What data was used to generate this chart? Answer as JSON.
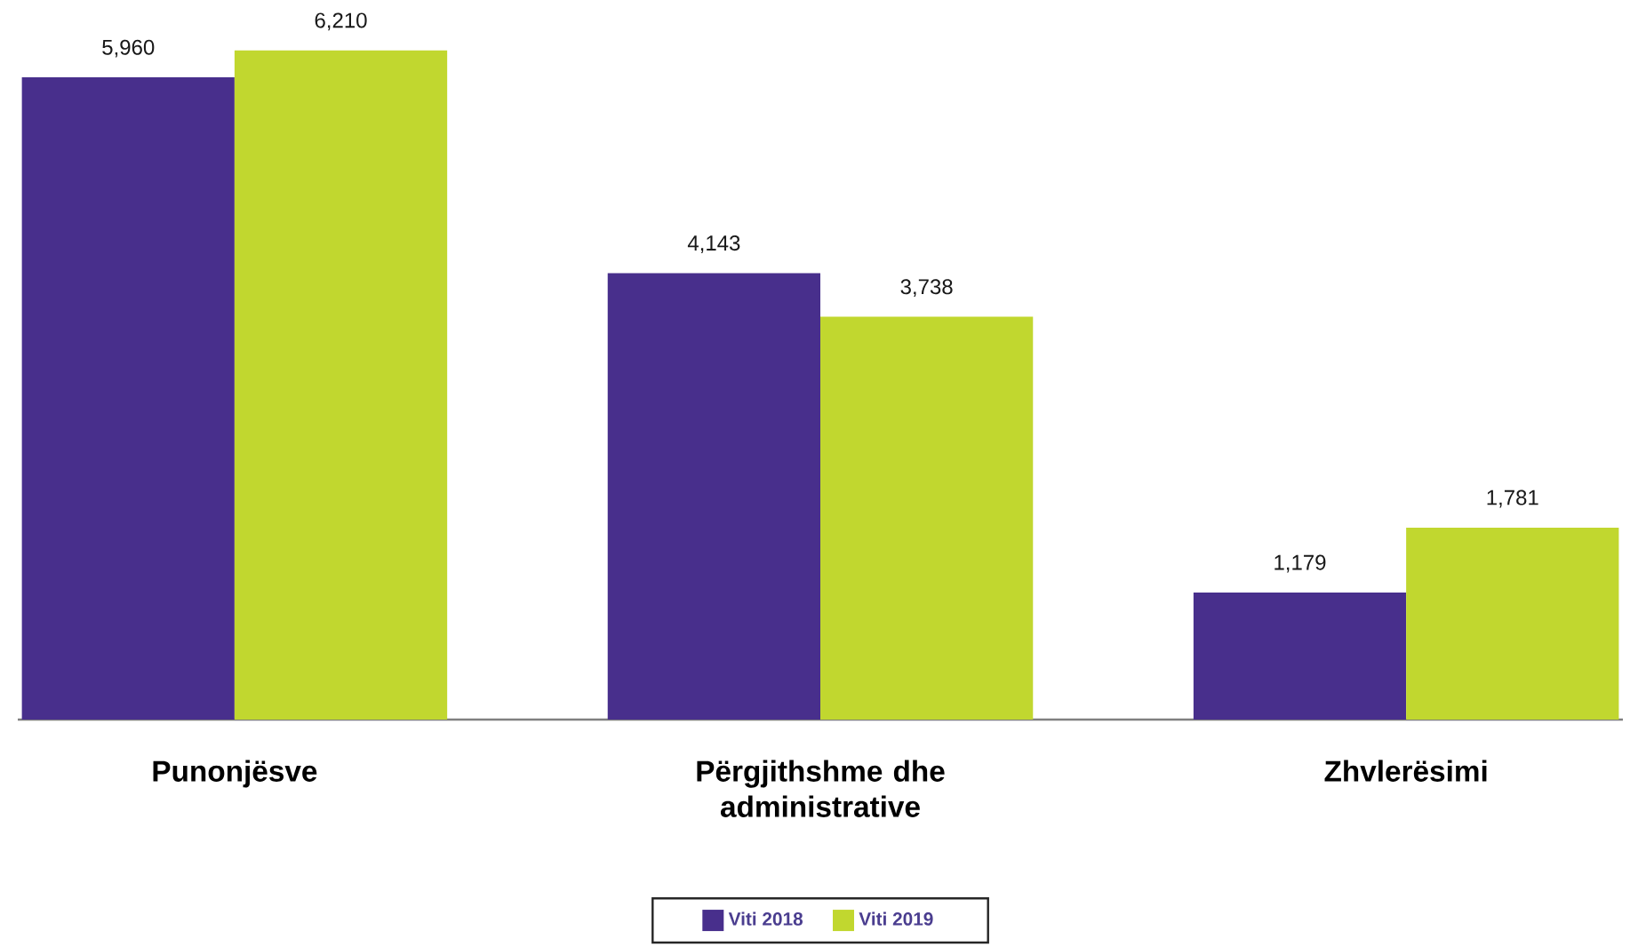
{
  "chart_data": {
    "type": "bar",
    "categories": [
      "Punonjësve",
      "Përgjithshme dhe administrative",
      "Zhvlerësimi"
    ],
    "series": [
      {
        "name": "Viti 2018",
        "color": "#482f8c",
        "values": [
          5960,
          4143,
          1179
        ],
        "value_labels": [
          "5,960",
          "4,143",
          "1,179"
        ]
      },
      {
        "name": "Viti 2019",
        "color": "#c1d72f",
        "values": [
          6210,
          3738,
          1781
        ],
        "value_labels": [
          "6,210",
          "3,738",
          "1,781"
        ]
      }
    ],
    "tick_labels": "x",
    "legend": "bottom"
  }
}
